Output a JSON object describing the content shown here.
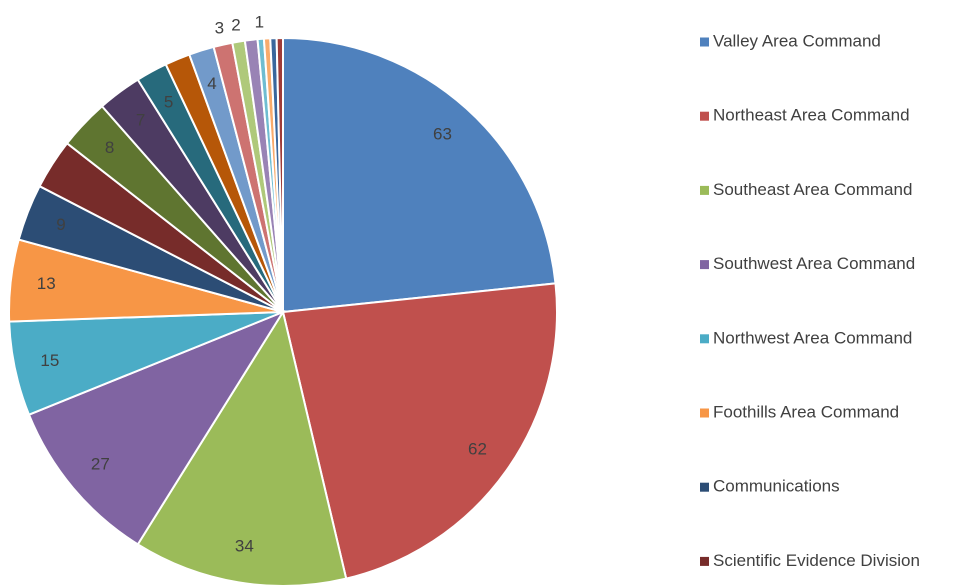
{
  "chart_data": {
    "type": "pie",
    "categories": [
      "Valley Area Command",
      "Northeast Area Command",
      "Southeast Area Command",
      "Southwest Area Command",
      "Northwest Area Command",
      "Foothills Area Command",
      "Communications",
      "Scientific Evidence Division",
      null,
      null,
      null,
      null,
      null,
      null,
      null,
      null,
      null,
      null,
      null,
      null
    ],
    "values": [
      63,
      62,
      34,
      27,
      15,
      13,
      9,
      8,
      8,
      7,
      5,
      4,
      4,
      3,
      2,
      2,
      1,
      1,
      1,
      1
    ],
    "value_labels": [
      "63",
      "62",
      "34",
      "27",
      "15",
      "13",
      "9",
      null,
      "8",
      "7",
      "5",
      null,
      "4",
      "3",
      "2",
      null,
      "1",
      null,
      null,
      null
    ],
    "colors": [
      "#4F81BD",
      "#C0504D",
      "#9BBB59",
      "#8064A2",
      "#4BACC6",
      "#F79646",
      "#2C4D75",
      "#772C2A",
      "#5F7530",
      "#4D3B62",
      "#276A7C",
      "#B65708",
      "#729ACA",
      "#CD7371",
      "#AFC97A",
      "#9983B5",
      "#6FBDD1",
      "#F9AB6B",
      "#3A679C",
      "#9F3B38"
    ]
  }
}
